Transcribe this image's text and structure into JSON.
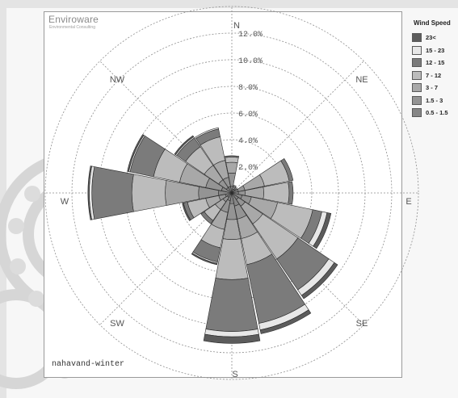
{
  "logo": {
    "name": "Enviroware",
    "tagline": "Environmental Consulting"
  },
  "caption": "nahavand-winter",
  "colors": {
    "panel_border": "#9a9a9a",
    "grid": "#8f8f8f",
    "petal_stroke": "#2a2a2a",
    "decorative_pattern": "#d8d8d8"
  },
  "chart_data": {
    "type": "windrose",
    "title": "",
    "radial_axis": {
      "unit": "%",
      "ticks": [
        "2.0%",
        "4.0%",
        "6.0%",
        "8.0%",
        "10.0%",
        "12.0%"
      ],
      "max": 14,
      "grid": true
    },
    "direction_labels": [
      "N",
      "NE",
      "E",
      "SE",
      "S",
      "SW",
      "W",
      "NW"
    ],
    "directions": [
      "N",
      "NNE",
      "NE",
      "ENE",
      "E",
      "ESE",
      "SE",
      "SSE",
      "S",
      "SSW",
      "SW",
      "WSW",
      "W",
      "WNW",
      "NW",
      "NNW"
    ],
    "legend": {
      "title": "Wind Speed",
      "placement": "top-right",
      "bins": [
        {
          "label": "23<",
          "color": "#5c5c5c"
        },
        {
          "label": "15 - 23",
          "color": "#e7e7e7"
        },
        {
          "label": "12 - 15",
          "color": "#7b7b7b"
        },
        {
          "label": "7 - 12",
          "color": "#bcbcbc"
        },
        {
          "label": "3 - 7",
          "color": "#a8a8a8"
        },
        {
          "label": "1.5 - 3",
          "color": "#949494"
        },
        {
          "label": "0.5 - 1.5",
          "color": "#868686"
        }
      ]
    },
    "stack_order_from_center": [
      "0.5 - 1.5",
      "1.5 - 3",
      "3 - 7",
      "7 - 12",
      "12 - 15",
      "15 - 23",
      "23<"
    ],
    "cumulative_percent": [
      {
        "dir": "N",
        "bounds": [
          0.5,
          1.5,
          2.3,
          2.7,
          2.8,
          2.8,
          2.8
        ]
      },
      {
        "dir": "NNE",
        "bounds": [
          0.3,
          0.5,
          0.6,
          0.6,
          0.6,
          0.6,
          0.6
        ]
      },
      {
        "dir": "NE",
        "bounds": [
          0.3,
          0.4,
          0.5,
          0.5,
          0.5,
          0.5,
          0.5
        ]
      },
      {
        "dir": "ENE",
        "bounds": [
          0.5,
          1.0,
          2.5,
          4.4,
          4.7,
          4.7,
          4.7
        ]
      },
      {
        "dir": "E",
        "bounds": [
          0.5,
          1.0,
          2.4,
          4.3,
          4.6,
          4.6,
          4.6
        ]
      },
      {
        "dir": "ESE",
        "bounds": [
          0.8,
          1.5,
          3.5,
          6.2,
          6.9,
          7.3,
          7.6
        ]
      },
      {
        "dir": "SE",
        "bounds": [
          0.6,
          1.2,
          2.8,
          6.0,
          8.8,
          9.3,
          9.6
        ]
      },
      {
        "dir": "SSE",
        "bounds": [
          1.0,
          2.0,
          3.5,
          5.5,
          10.0,
          10.5,
          10.8
        ]
      },
      {
        "dir": "S",
        "bounds": [
          0.8,
          2.0,
          3.5,
          6.5,
          10.4,
          10.8,
          11.3
        ]
      },
      {
        "dir": "SSW",
        "bounds": [
          0.6,
          1.5,
          2.8,
          4.2,
          5.3,
          5.4,
          5.5
        ]
      },
      {
        "dir": "SW",
        "bounds": [
          0.4,
          0.8,
          1.5,
          2.5,
          2.8,
          2.8,
          2.8
        ]
      },
      {
        "dir": "WSW",
        "bounds": [
          0.5,
          1.0,
          2.0,
          3.4,
          3.7,
          3.7,
          3.8
        ]
      },
      {
        "dir": "W",
        "bounds": [
          1.0,
          2.5,
          5.0,
          7.5,
          10.5,
          10.7,
          10.8
        ]
      },
      {
        "dir": "WNW",
        "bounds": [
          0.8,
          2.0,
          4.0,
          6.0,
          7.8,
          7.9,
          8.0
        ]
      },
      {
        "dir": "NW",
        "bounds": [
          0.5,
          1.2,
          2.5,
          4.2,
          5.0,
          5.1,
          5.2
        ]
      },
      {
        "dir": "NNW",
        "bounds": [
          0.5,
          1.2,
          2.5,
          4.3,
          4.9,
          5.0,
          5.0
        ]
      }
    ]
  }
}
